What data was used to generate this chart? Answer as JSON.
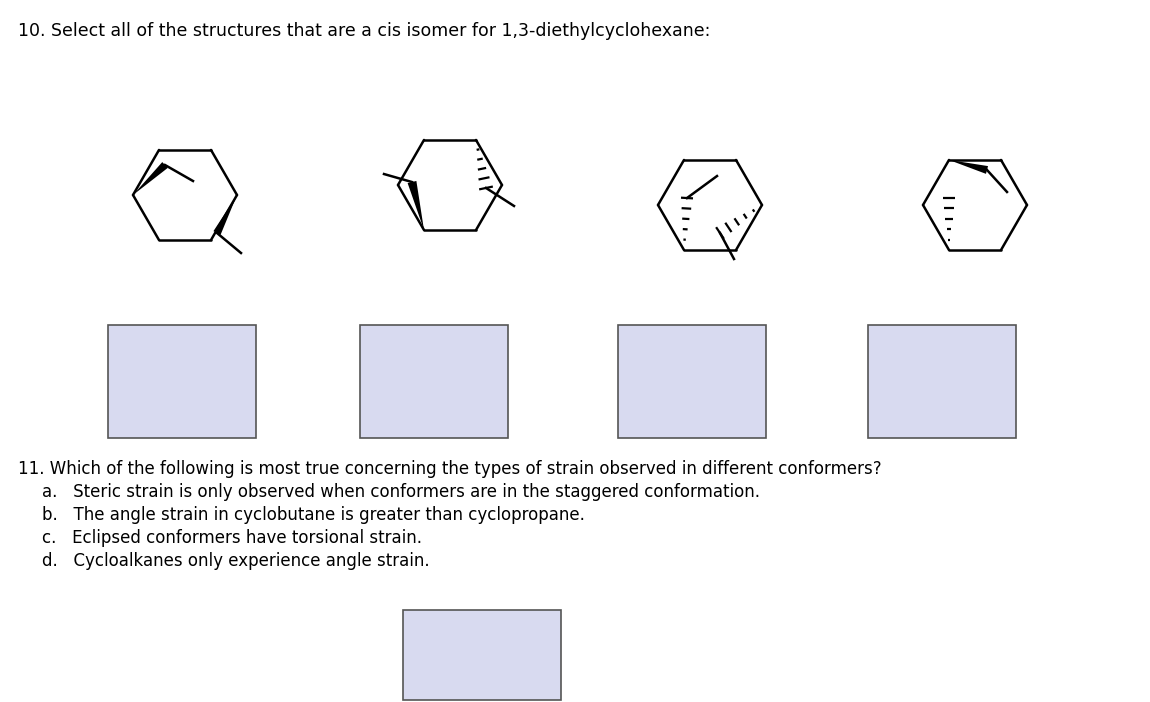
{
  "title_q10": "10. Select all of the structures that are a cis isomer for 1,3-diethylcyclohexane:",
  "title_q11": "11. Which of the following is most true concerning the types of strain observed in different conformers?",
  "options": [
    "a.   Steric strain is only observed when conformers are in the staggered conformation.",
    "b.   The angle strain in cyclobutane is greater than cyclopropane.",
    "c.   Eclipsed conformers have torsional strain.",
    "d.   Cycloalkanes only experience angle strain."
  ],
  "bg_color": "#ffffff",
  "box_color": "#d8daf0",
  "box_edge_color": "#555555",
  "text_color": "#000000",
  "title_fontsize": 12.5,
  "body_fontsize": 12.0
}
